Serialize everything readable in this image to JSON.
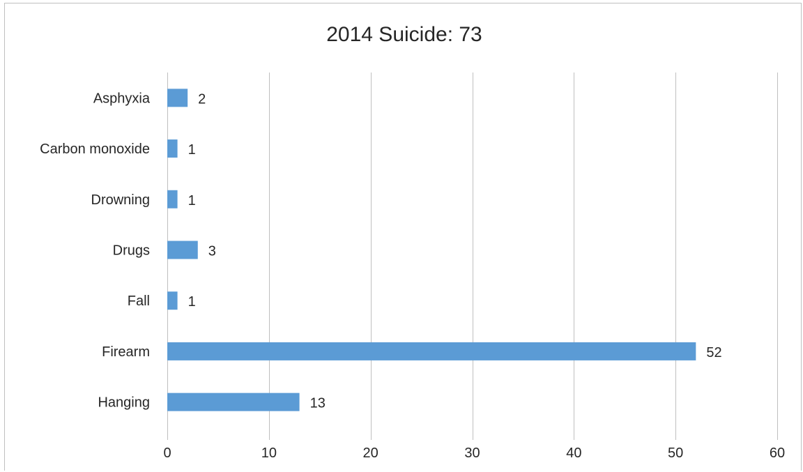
{
  "chart_data": {
    "type": "bar",
    "orientation": "horizontal",
    "title": "2014 Suicide: 73",
    "xlabel": "",
    "ylabel": "",
    "categories": [
      "Asphyxia",
      "Carbon monoxide",
      "Drowning",
      "Drugs",
      "Fall",
      "Firearm",
      "Hanging"
    ],
    "values": [
      2,
      1,
      1,
      3,
      1,
      52,
      13
    ],
    "xlim": [
      0,
      60
    ],
    "xticks": [
      0,
      10,
      20,
      30,
      40,
      50,
      60
    ],
    "grid": "vertical",
    "legend": "none",
    "data_labels": true,
    "bar_color": "#5b9bd5",
    "grid_color": "#bfbfbf",
    "text_color": "#262626"
  }
}
